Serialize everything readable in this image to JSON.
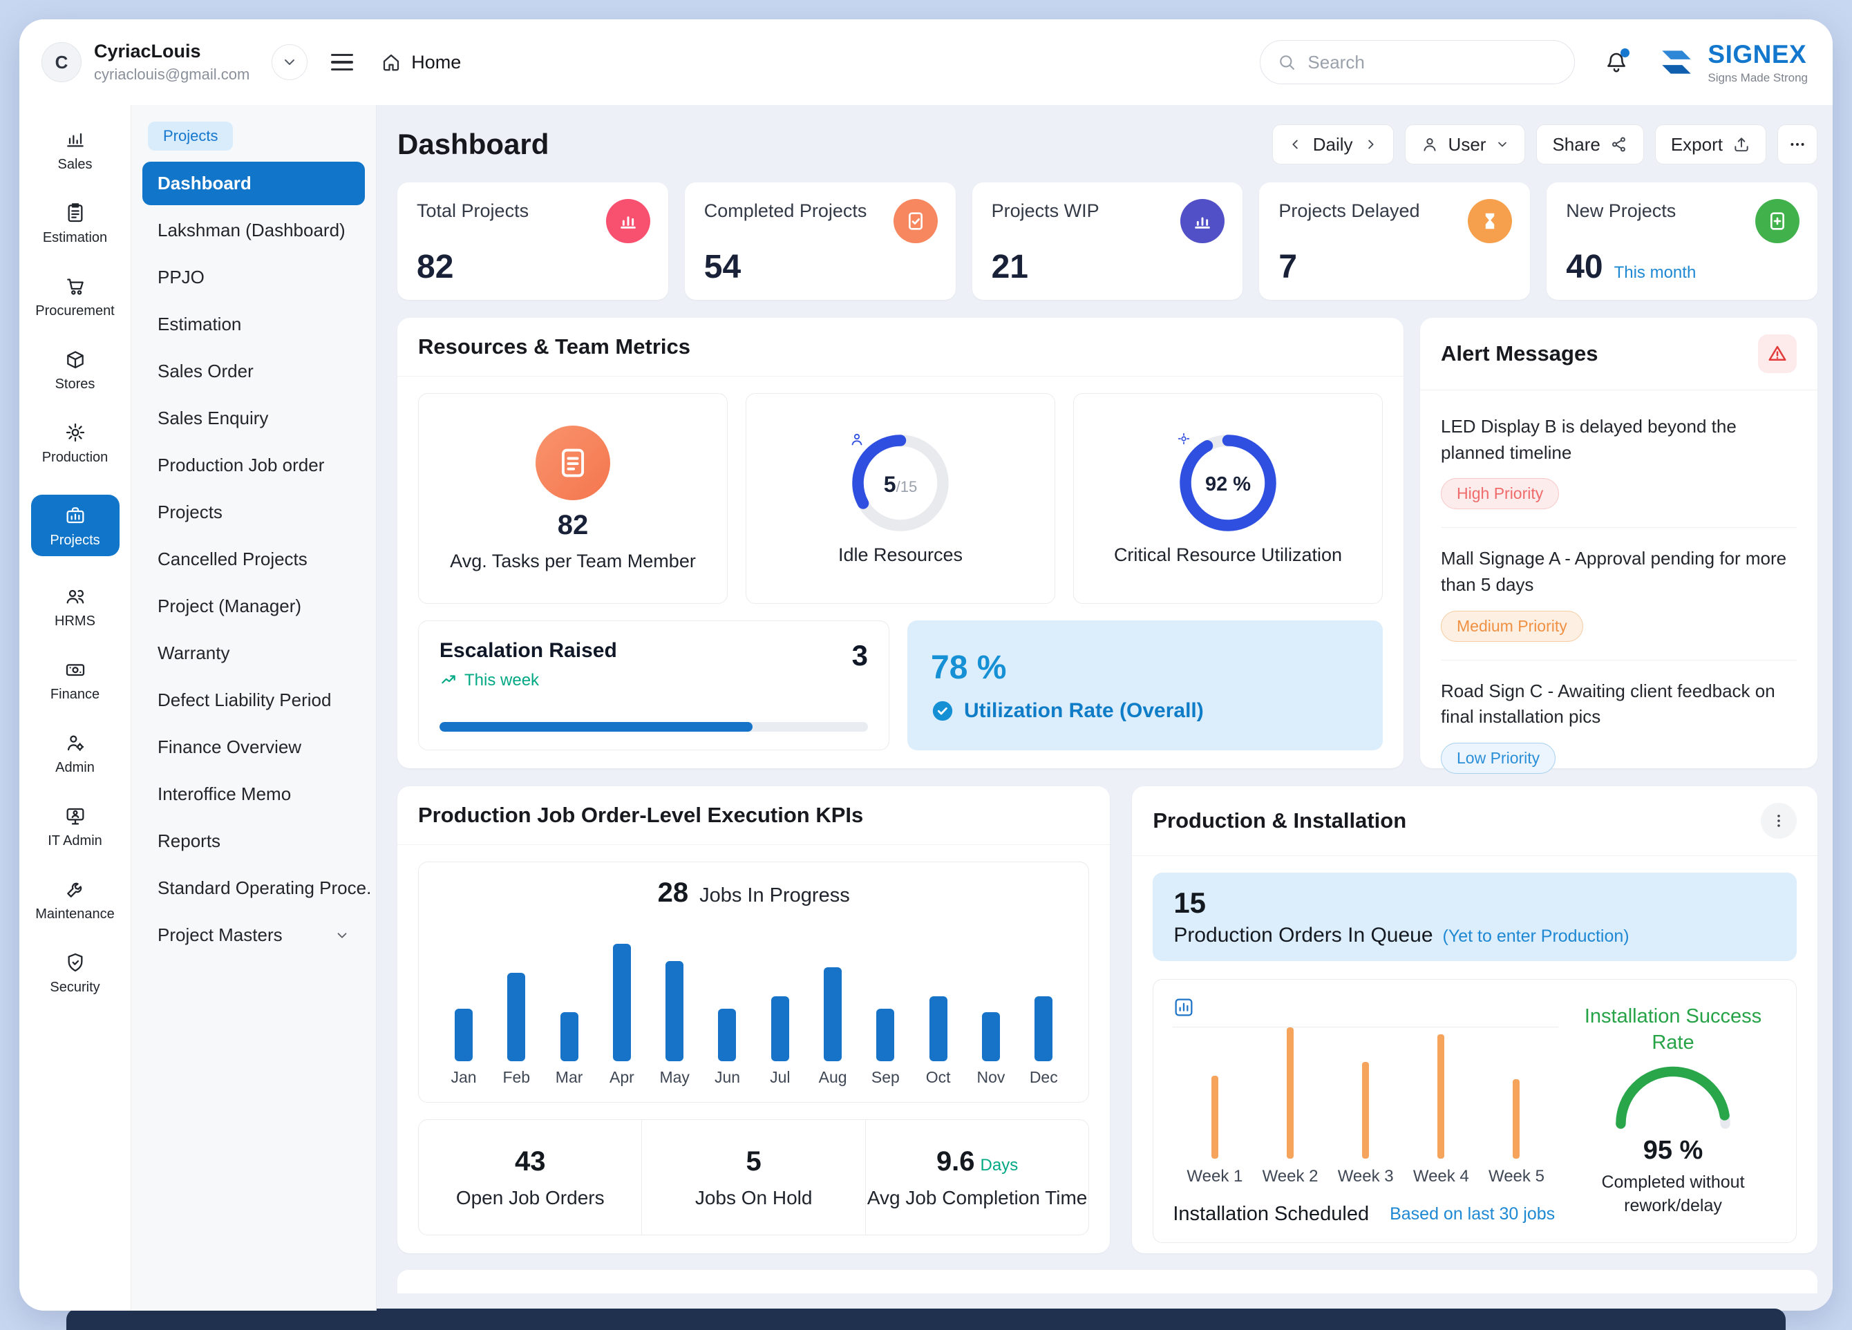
{
  "topbar": {
    "user_initial": "C",
    "user_name": "CyriacLouis",
    "user_email": "cyriaclouis@gmail.com",
    "home_label": "Home",
    "search_placeholder": "Search",
    "logo_name": "SIGNEX",
    "logo_tagline": "Signs Made Strong"
  },
  "colors": {
    "accent_blue": "#1176c9",
    "teal": "#00a884",
    "link_blue": "#1e88d2",
    "bar_blue": "#1673c7",
    "bar_orange": "#f6a35c",
    "gauge_green": "#2aa64a"
  },
  "rail": {
    "items": [
      {
        "label": "Sales"
      },
      {
        "label": "Estimation"
      },
      {
        "label": "Procurement"
      },
      {
        "label": "Stores"
      },
      {
        "label": "Production"
      },
      {
        "label": "Projects",
        "active": true
      },
      {
        "label": "HRMS"
      },
      {
        "label": "Finance"
      },
      {
        "label": "Admin"
      },
      {
        "label": "IT Admin"
      },
      {
        "label": "Maintenance"
      },
      {
        "label": "Security"
      }
    ]
  },
  "menu": {
    "section_badge": "Projects",
    "items": [
      {
        "label": "Dashboard",
        "active": true
      },
      {
        "label": "Lakshman (Dashboard)"
      },
      {
        "label": "PPJO"
      },
      {
        "label": "Estimation"
      },
      {
        "label": "Sales Order"
      },
      {
        "label": "Sales Enquiry"
      },
      {
        "label": "Production Job order"
      },
      {
        "label": "Projects"
      },
      {
        "label": "Cancelled Projects"
      },
      {
        "label": "Project (Manager)"
      },
      {
        "label": "Warranty"
      },
      {
        "label": "Defect Liability Period"
      },
      {
        "label": "Finance Overview"
      },
      {
        "label": "Interoffice Memo"
      },
      {
        "label": "Reports"
      },
      {
        "label": "Standard Operating Proce."
      },
      {
        "label": "Project Masters"
      }
    ]
  },
  "header": {
    "title": "Dashboard",
    "period": "Daily",
    "user_menu": "User",
    "share": "Share",
    "export": "Export"
  },
  "kpis": [
    {
      "label": "Total Projects",
      "value": "82",
      "icon": "bar-chart-icon",
      "color": "#f8516f"
    },
    {
      "label": "Completed Projects",
      "value": "54",
      "icon": "doc-check-icon",
      "color": "#f6875f"
    },
    {
      "label": "Projects WIP",
      "value": "21",
      "icon": "bar-chart-icon",
      "color": "#5150c6"
    },
    {
      "label": "Projects Delayed",
      "value": "7",
      "icon": "hourglass-icon",
      "color": "#f6a04d"
    },
    {
      "label": "New Projects",
      "value": "40",
      "sub": "This month",
      "icon": "doc-plus-icon",
      "color": "#41b14b"
    }
  ],
  "resources": {
    "title": "Resources & Team Metrics",
    "avg_tasks_value": "82",
    "avg_tasks_label": "Avg. Tasks per Team Member",
    "idle_value": "5",
    "idle_total": "/15",
    "idle_pct": 33,
    "idle_label": "Idle Resources",
    "critical_value": "92 %",
    "critical_pct": 92,
    "critical_label": "Critical Resource Utilization",
    "escalation_title": "Escalation Raised",
    "escalation_sub": "This week",
    "escalation_value": "3",
    "escalation_progress": 73,
    "utilization_value": "78 %",
    "utilization_label": "Utilization Rate (Overall)"
  },
  "alerts": {
    "title": "Alert Messages",
    "items": [
      {
        "text": "LED Display B is delayed beyond the planned timeline",
        "priority": "High Priority",
        "level": "high"
      },
      {
        "text": "Mall Signage A - Approval pending for more than 5 days",
        "priority": "Medium Priority",
        "level": "medium"
      },
      {
        "text": "Road Sign C - Awaiting client feedback on final installation pics",
        "priority": "Low Priority",
        "level": "low"
      }
    ]
  },
  "job_kpis": {
    "title": "Production Job Order-Level Execution KPIs",
    "jobs_value": "28",
    "jobs_label": "Jobs In Progress",
    "months": [
      "Jan",
      "Feb",
      "Mar",
      "Apr",
      "May",
      "Jun",
      "Jul",
      "Aug",
      "Sep",
      "Oct",
      "Nov",
      "Dec"
    ],
    "heights": [
      76,
      128,
      71,
      170,
      145,
      76,
      94,
      136,
      76,
      94,
      71,
      94
    ],
    "stats": [
      {
        "value": "43",
        "label": "Open Job Orders"
      },
      {
        "value": "5",
        "label": "Jobs On Hold"
      },
      {
        "value": "9.6",
        "unit": "Days",
        "label": "Avg Job Completion Time"
      }
    ]
  },
  "production": {
    "title": "Production & Installation",
    "queue_value": "15",
    "queue_label": "Production Orders In Queue",
    "queue_note": "(Yet to enter Production)",
    "week_labels": [
      "Week 1",
      "Week 2",
      "Week 3",
      "Week 4",
      "Week 5"
    ],
    "week_heights": [
      120,
      190,
      140,
      180,
      115
    ],
    "scheduled_label": "Installation Scheduled",
    "based_on": "Based on last 30 jobs",
    "success_title": "Installation Success Rate",
    "success_value": "95 %",
    "success_pct": 95,
    "success_caption": "Completed without rework/delay"
  },
  "chart_data": [
    {
      "type": "bar",
      "title": "Jobs In Progress",
      "categories": [
        "Jan",
        "Feb",
        "Mar",
        "Apr",
        "May",
        "Jun",
        "Jul",
        "Aug",
        "Sep",
        "Oct",
        "Nov",
        "Dec"
      ],
      "values": [
        76,
        128,
        71,
        170,
        145,
        76,
        94,
        136,
        76,
        94,
        71,
        94
      ],
      "note": "relative heights, no y-axis labels shown"
    },
    {
      "type": "bar",
      "title": "Installation Scheduled",
      "categories": [
        "Week 1",
        "Week 2",
        "Week 3",
        "Week 4",
        "Week 5"
      ],
      "values": [
        120,
        190,
        140,
        180,
        115
      ],
      "note": "relative heights, no y-axis labels shown"
    }
  ]
}
